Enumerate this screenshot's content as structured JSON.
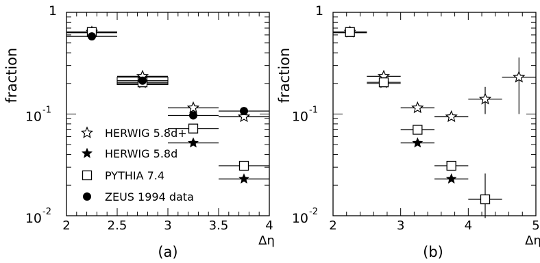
{
  "figure": {
    "ylabel": "fraction",
    "legend": [
      {
        "name": "HERWIG 5.8d+",
        "marker": "open-star"
      },
      {
        "name": "HERWIG 5.8d",
        "marker": "filled-star"
      },
      {
        "name": "PYTHIA 7.4",
        "marker": "open-square"
      },
      {
        "name": "ZEUS 1994 data",
        "marker": "filled-circle"
      }
    ],
    "legend_panel": "a",
    "legend_position": "lower-left"
  },
  "chart_data": [
    {
      "type": "scatter",
      "panel_label": "(a)",
      "xlabel": "Δη",
      "ylabel": "fraction",
      "xlim": [
        2,
        4
      ],
      "ylim": [
        0.01,
        1
      ],
      "yscale": "log",
      "xticks": [
        {
          "v": 2,
          "label": "2"
        },
        {
          "v": 2.5,
          "label": "2.5"
        },
        {
          "v": 3,
          "label": "3"
        },
        {
          "v": 3.5,
          "label": "3.5"
        },
        {
          "v": 4,
          "label": "4"
        }
      ],
      "yticks": [
        {
          "v": 1,
          "base": "1",
          "exp": ""
        },
        {
          "v": 0.1,
          "base": "10",
          "exp": "-1"
        },
        {
          "v": 0.01,
          "base": "10",
          "exp": "-2"
        }
      ],
      "data_box": {
        "x": [
          2.5,
          3.0
        ],
        "y": [
          0.195,
          0.23
        ]
      },
      "series": [
        {
          "name": "HERWIG 5.8d+",
          "marker": "open-star",
          "points": [
            {
              "x": 2.25,
              "y": 0.64,
              "xerr": 0.25
            },
            {
              "x": 2.75,
              "y": 0.235,
              "xerr": 0.25
            },
            {
              "x": 3.25,
              "y": 0.115,
              "xerr": 0.25
            },
            {
              "x": 3.75,
              "y": 0.094,
              "xerr": 0.25
            }
          ]
        },
        {
          "name": "HERWIG 5.8d",
          "marker": "filled-star",
          "points": [
            {
              "x": 2.25,
              "y": 0.63,
              "xerr": 0.25
            },
            {
              "x": 2.75,
              "y": 0.2,
              "xerr": 0.25
            },
            {
              "x": 3.25,
              "y": 0.052,
              "xerr": 0.25
            },
            {
              "x": 3.75,
              "y": 0.023,
              "xerr": 0.25
            }
          ]
        },
        {
          "name": "PYTHIA 7.4",
          "marker": "open-square",
          "points": [
            {
              "x": 2.25,
              "y": 0.64,
              "xerr": 0.25
            },
            {
              "x": 2.75,
              "y": 0.205,
              "xerr": 0.25
            },
            {
              "x": 3.25,
              "y": 0.072,
              "xerr": 0.25
            },
            {
              "x": 3.75,
              "y": 0.031,
              "xerr": 0.25
            }
          ]
        },
        {
          "name": "ZEUS 1994 data",
          "marker": "filled-circle",
          "points": [
            {
              "x": 2.25,
              "y": 0.58,
              "xerr": 0.25
            },
            {
              "x": 2.75,
              "y": 0.213,
              "xerr": 0.25
            },
            {
              "x": 3.25,
              "y": 0.097,
              "xerr": 0.25
            },
            {
              "x": 3.75,
              "y": 0.107,
              "xerr": 0.25
            }
          ]
        }
      ]
    },
    {
      "type": "scatter",
      "panel_label": "(b)",
      "xlabel": "Δη",
      "ylabel": "fraction",
      "xlim": [
        2,
        5
      ],
      "ylim": [
        0.01,
        1
      ],
      "yscale": "log",
      "xticks": [
        {
          "v": 2,
          "label": "2"
        },
        {
          "v": 3,
          "label": "3"
        },
        {
          "v": 4,
          "label": "4"
        },
        {
          "v": 5,
          "label": "5"
        }
      ],
      "yticks": [
        {
          "v": 1,
          "base": "1",
          "exp": ""
        },
        {
          "v": 0.1,
          "base": "10",
          "exp": "-1"
        },
        {
          "v": 0.01,
          "base": "10",
          "exp": "-2"
        }
      ],
      "series": [
        {
          "name": "HERWIG 5.8d+",
          "marker": "open-star",
          "points": [
            {
              "x": 2.25,
              "y": 0.64,
              "xerr": 0.25
            },
            {
              "x": 2.75,
              "y": 0.235,
              "xerr": 0.25
            },
            {
              "x": 3.25,
              "y": 0.115,
              "xerr": 0.25
            },
            {
              "x": 3.75,
              "y": 0.094,
              "xerr": 0.25
            },
            {
              "x": 4.25,
              "y": 0.14,
              "xerr": 0.25,
              "ylo": 0.1,
              "yhi": 0.185
            },
            {
              "x": 4.75,
              "y": 0.23,
              "xerr": 0.25,
              "ylo": 0.1,
              "yhi": 0.36
            }
          ]
        },
        {
          "name": "HERWIG 5.8d",
          "marker": "filled-star",
          "points": [
            {
              "x": 2.25,
              "y": 0.63,
              "xerr": 0.25
            },
            {
              "x": 2.75,
              "y": 0.2,
              "xerr": 0.25
            },
            {
              "x": 3.25,
              "y": 0.052,
              "xerr": 0.25
            },
            {
              "x": 3.75,
              "y": 0.023,
              "xerr": 0.25
            }
          ]
        },
        {
          "name": "PYTHIA 7.4",
          "marker": "open-square",
          "points": [
            {
              "x": 2.25,
              "y": 0.64,
              "xerr": 0.25
            },
            {
              "x": 2.75,
              "y": 0.205,
              "xerr": 0.25
            },
            {
              "x": 3.25,
              "y": 0.07,
              "xerr": 0.25
            },
            {
              "x": 3.75,
              "y": 0.031,
              "xerr": 0.25
            },
            {
              "x": 4.25,
              "y": 0.0145,
              "xerr": 0.25,
              "ylo": 0.0095,
              "yhi": 0.026
            }
          ]
        }
      ]
    }
  ]
}
